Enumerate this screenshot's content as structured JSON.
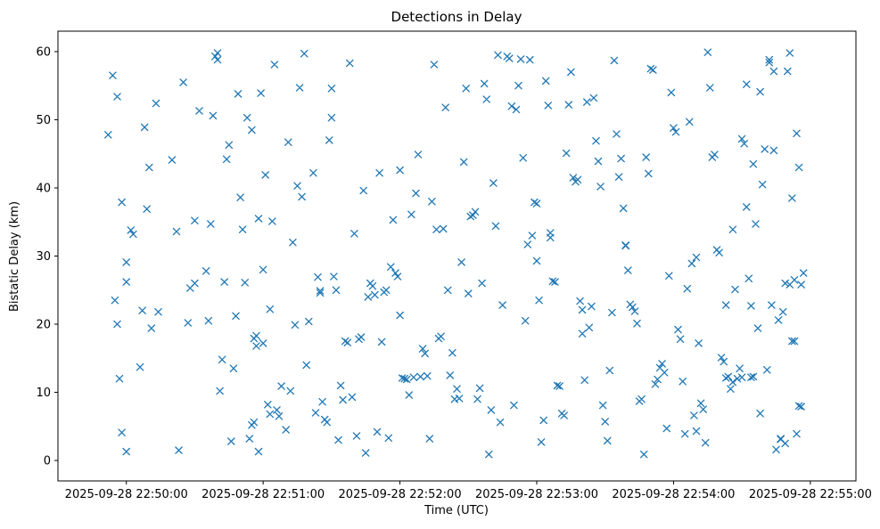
{
  "figure": {
    "background": "#ffffff"
  },
  "chart_data": {
    "type": "scatter",
    "title": "Detections in Delay",
    "xlabel": "Time (UTC)",
    "ylabel": "Bistatic Delay (km)",
    "marker": "x",
    "marker_color": "#1f77b4",
    "spine_color": "#000000",
    "legend": "none",
    "grid": false,
    "x_unit": "seconds after 2025-09-28 22:50:00 UTC",
    "xlim_seconds": [
      -30,
      320
    ],
    "ylim": [
      -3,
      63
    ],
    "x_ticks_seconds": [
      0,
      60,
      120,
      180,
      240,
      300
    ],
    "x_tick_labels": [
      "2025-09-28 22:50:00",
      "2025-09-28 22:51:00",
      "2025-09-28 22:52:00",
      "2025-09-28 22:53:00",
      "2025-09-28 22:54:00",
      "2025-09-28 22:55:00"
    ],
    "y_ticks": [
      0,
      10,
      20,
      30,
      40,
      50,
      60
    ],
    "points": [
      [
        -8,
        47.8
      ],
      [
        -6,
        56.5
      ],
      [
        -5,
        23.5
      ],
      [
        -4,
        53.4
      ],
      [
        -4,
        20.0
      ],
      [
        -2,
        37.9
      ],
      [
        -3,
        12.0
      ],
      [
        -2,
        4.1
      ],
      [
        0,
        29.1
      ],
      [
        0,
        26.2
      ],
      [
        0,
        1.3
      ],
      [
        2,
        33.8
      ],
      [
        3,
        33.2
      ],
      [
        6,
        13.7
      ],
      [
        7,
        22.0
      ],
      [
        8,
        48.9
      ],
      [
        9,
        36.9
      ],
      [
        10,
        43.0
      ],
      [
        11,
        19.4
      ],
      [
        13,
        52.4
      ],
      [
        14,
        21.8
      ],
      [
        20,
        44.1
      ],
      [
        22,
        33.6
      ],
      [
        23,
        1.5
      ],
      [
        25,
        55.5
      ],
      [
        27,
        20.2
      ],
      [
        28,
        25.3
      ],
      [
        30,
        26.0
      ],
      [
        30,
        35.2
      ],
      [
        32,
        51.3
      ],
      [
        35,
        27.8
      ],
      [
        36,
        20.5
      ],
      [
        37,
        34.7
      ],
      [
        38,
        50.6
      ],
      [
        39,
        59.3
      ],
      [
        40,
        59.8
      ],
      [
        40,
        58.8
      ],
      [
        41,
        10.2
      ],
      [
        42,
        14.8
      ],
      [
        43,
        26.2
      ],
      [
        44,
        44.2
      ],
      [
        45,
        46.3
      ],
      [
        46,
        2.8
      ],
      [
        47,
        13.5
      ],
      [
        48,
        21.2
      ],
      [
        49,
        53.8
      ],
      [
        50,
        38.6
      ],
      [
        51,
        33.9
      ],
      [
        52,
        26.1
      ],
      [
        53,
        50.3
      ],
      [
        54,
        3.2
      ],
      [
        55,
        48.5
      ],
      [
        55,
        5.2
      ],
      [
        56,
        5.6
      ],
      [
        56,
        17.9
      ],
      [
        57,
        18.3
      ],
      [
        57,
        16.8
      ],
      [
        58,
        1.3
      ],
      [
        58,
        35.5
      ],
      [
        59,
        53.9
      ],
      [
        60,
        28.0
      ],
      [
        60,
        17.2
      ],
      [
        61,
        41.9
      ],
      [
        62,
        8.2
      ],
      [
        63,
        6.8
      ],
      [
        63,
        22.2
      ],
      [
        64,
        35.1
      ],
      [
        65,
        58.1
      ],
      [
        66,
        7.4
      ],
      [
        67,
        6.5
      ],
      [
        68,
        10.9
      ],
      [
        70,
        4.5
      ],
      [
        71,
        46.7
      ],
      [
        72,
        10.2
      ],
      [
        73,
        32.0
      ],
      [
        74,
        19.9
      ],
      [
        75,
        40.3
      ],
      [
        76,
        54.7
      ],
      [
        77,
        38.7
      ],
      [
        78,
        59.7
      ],
      [
        79,
        14.0
      ],
      [
        80,
        20.4
      ],
      [
        82,
        42.2
      ],
      [
        83,
        7.0
      ],
      [
        84,
        26.9
      ],
      [
        85,
        24.9
      ],
      [
        85,
        24.6
      ],
      [
        86,
        8.6
      ],
      [
        87,
        6.0
      ],
      [
        88,
        5.6
      ],
      [
        89,
        47.0
      ],
      [
        90,
        54.6
      ],
      [
        90,
        50.3
      ],
      [
        91,
        27.0
      ],
      [
        92,
        25.0
      ],
      [
        93,
        3.0
      ],
      [
        94,
        11.0
      ],
      [
        95,
        8.9
      ],
      [
        96,
        17.5
      ],
      [
        97,
        17.3
      ],
      [
        98,
        58.3
      ],
      [
        99,
        9.3
      ],
      [
        100,
        33.3
      ],
      [
        101,
        3.6
      ],
      [
        102,
        17.8
      ],
      [
        103,
        18.1
      ],
      [
        104,
        39.6
      ],
      [
        105,
        1.1
      ],
      [
        106,
        24.0
      ],
      [
        107,
        26.0
      ],
      [
        108,
        25.6
      ],
      [
        109,
        24.3
      ],
      [
        110,
        4.2
      ],
      [
        111,
        42.2
      ],
      [
        112,
        17.4
      ],
      [
        113,
        24.7
      ],
      [
        114,
        25.0
      ],
      [
        115,
        3.3
      ],
      [
        116,
        28.4
      ],
      [
        117,
        35.3
      ],
      [
        118,
        27.5
      ],
      [
        119,
        27.0
      ],
      [
        120,
        21.3
      ],
      [
        120,
        42.6
      ],
      [
        121,
        12.1
      ],
      [
        122,
        12.0
      ],
      [
        123,
        11.9
      ],
      [
        124,
        9.6
      ],
      [
        125,
        36.1
      ],
      [
        126,
        12.2
      ],
      [
        127,
        39.2
      ],
      [
        128,
        44.9
      ],
      [
        129,
        12.3
      ],
      [
        130,
        16.4
      ],
      [
        131,
        15.7
      ],
      [
        132,
        12.4
      ],
      [
        133,
        3.2
      ],
      [
        134,
        38.0
      ],
      [
        135,
        58.1
      ],
      [
        136,
        33.9
      ],
      [
        137,
        17.9
      ],
      [
        138,
        18.2
      ],
      [
        139,
        34.0
      ],
      [
        140,
        51.8
      ],
      [
        141,
        25.0
      ],
      [
        142,
        12.5
      ],
      [
        143,
        15.8
      ],
      [
        144,
        9.0
      ],
      [
        145,
        10.5
      ],
      [
        146,
        9.1
      ],
      [
        147,
        29.1
      ],
      [
        148,
        43.8
      ],
      [
        149,
        54.6
      ],
      [
        150,
        24.5
      ],
      [
        151,
        35.8
      ],
      [
        152,
        36.0
      ],
      [
        153,
        36.5
      ],
      [
        154,
        9.0
      ],
      [
        155,
        10.6
      ],
      [
        156,
        26.0
      ],
      [
        157,
        55.3
      ],
      [
        158,
        53.0
      ],
      [
        159,
        0.9
      ],
      [
        160,
        7.4
      ],
      [
        161,
        40.7
      ],
      [
        162,
        34.4
      ],
      [
        163,
        59.5
      ],
      [
        164,
        5.6
      ],
      [
        165,
        22.8
      ],
      [
        167,
        59.3
      ],
      [
        168,
        59.0
      ],
      [
        169,
        52.0
      ],
      [
        170,
        8.1
      ],
      [
        171,
        51.5
      ],
      [
        172,
        55.0
      ],
      [
        173,
        58.9
      ],
      [
        174,
        44.4
      ],
      [
        175,
        20.5
      ],
      [
        176,
        31.7
      ],
      [
        177,
        58.8
      ],
      [
        178,
        33.0
      ],
      [
        179,
        37.9
      ],
      [
        180,
        37.7
      ],
      [
        180,
        29.3
      ],
      [
        181,
        23.5
      ],
      [
        182,
        2.7
      ],
      [
        183,
        5.9
      ],
      [
        184,
        55.7
      ],
      [
        185,
        52.1
      ],
      [
        186,
        33.4
      ],
      [
        186,
        32.7
      ],
      [
        187,
        26.3
      ],
      [
        188,
        26.2
      ],
      [
        189,
        11.0
      ],
      [
        190,
        10.9
      ],
      [
        191,
        6.9
      ],
      [
        192,
        6.6
      ],
      [
        193,
        45.1
      ],
      [
        194,
        52.2
      ],
      [
        195,
        57.0
      ],
      [
        196,
        41.5
      ],
      [
        197,
        40.9
      ],
      [
        198,
        41.2
      ],
      [
        199,
        23.4
      ],
      [
        200,
        22.1
      ],
      [
        200,
        18.6
      ],
      [
        201,
        11.8
      ],
      [
        202,
        52.6
      ],
      [
        203,
        19.5
      ],
      [
        204,
        22.6
      ],
      [
        205,
        53.2
      ],
      [
        206,
        46.9
      ],
      [
        207,
        43.9
      ],
      [
        208,
        40.2
      ],
      [
        209,
        8.1
      ],
      [
        210,
        5.7
      ],
      [
        211,
        2.9
      ],
      [
        212,
        13.2
      ],
      [
        213,
        21.7
      ],
      [
        214,
        58.7
      ],
      [
        215,
        47.9
      ],
      [
        216,
        41.6
      ],
      [
        217,
        44.3
      ],
      [
        218,
        37.0
      ],
      [
        219,
        31.5
      ],
      [
        219,
        31.6
      ],
      [
        220,
        27.9
      ],
      [
        221,
        22.9
      ],
      [
        222,
        22.5
      ],
      [
        223,
        21.9
      ],
      [
        224,
        20.1
      ],
      [
        225,
        8.7
      ],
      [
        226,
        9.0
      ],
      [
        227,
        0.9
      ],
      [
        228,
        44.5
      ],
      [
        229,
        42.1
      ],
      [
        230,
        57.5
      ],
      [
        231,
        57.3
      ],
      [
        232,
        11.2
      ],
      [
        233,
        11.9
      ],
      [
        234,
        13.6
      ],
      [
        235,
        14.2
      ],
      [
        236,
        12.9
      ],
      [
        237,
        4.7
      ],
      [
        238,
        27.1
      ],
      [
        239,
        54.0
      ],
      [
        240,
        48.8
      ],
      [
        241,
        48.2
      ],
      [
        242,
        19.2
      ],
      [
        243,
        17.8
      ],
      [
        244,
        11.6
      ],
      [
        245,
        3.9
      ],
      [
        246,
        25.2
      ],
      [
        247,
        49.7
      ],
      [
        248,
        28.9
      ],
      [
        249,
        6.6
      ],
      [
        250,
        4.3
      ],
      [
        250,
        29.8
      ],
      [
        251,
        17.2
      ],
      [
        252,
        8.4
      ],
      [
        253,
        7.5
      ],
      [
        254,
        2.6
      ],
      [
        255,
        59.9
      ],
      [
        256,
        54.7
      ],
      [
        257,
        44.5
      ],
      [
        258,
        44.9
      ],
      [
        259,
        30.9
      ],
      [
        260,
        30.5
      ],
      [
        261,
        15.1
      ],
      [
        262,
        14.5
      ],
      [
        263,
        22.8
      ],
      [
        263,
        12.1
      ],
      [
        264,
        12.3
      ],
      [
        265,
        10.5
      ],
      [
        266,
        11.5
      ],
      [
        266,
        33.9
      ],
      [
        267,
        25.1
      ],
      [
        268,
        12.0
      ],
      [
        269,
        13.5
      ],
      [
        270,
        12.2
      ],
      [
        270,
        47.2
      ],
      [
        271,
        46.5
      ],
      [
        272,
        55.2
      ],
      [
        272,
        37.2
      ],
      [
        273,
        26.7
      ],
      [
        274,
        22.7
      ],
      [
        274,
        12.2
      ],
      [
        275,
        12.3
      ],
      [
        275,
        43.5
      ],
      [
        276,
        34.7
      ],
      [
        277,
        19.4
      ],
      [
        278,
        6.9
      ],
      [
        278,
        54.1
      ],
      [
        279,
        40.5
      ],
      [
        280,
        45.7
      ],
      [
        281,
        13.3
      ],
      [
        282,
        58.8
      ],
      [
        282,
        58.4
      ],
      [
        283,
        22.8
      ],
      [
        284,
        45.5
      ],
      [
        284,
        57.1
      ],
      [
        285,
        1.6
      ],
      [
        286,
        20.6
      ],
      [
        287,
        3.1
      ],
      [
        287,
        3.2
      ],
      [
        288,
        21.8
      ],
      [
        289,
        2.5
      ],
      [
        289,
        26.0
      ],
      [
        290,
        57.1
      ],
      [
        291,
        25.8
      ],
      [
        291,
        59.8
      ],
      [
        292,
        38.5
      ],
      [
        292,
        17.5
      ],
      [
        293,
        26.5
      ],
      [
        293,
        17.5
      ],
      [
        294,
        3.9
      ],
      [
        294,
        48.0
      ],
      [
        295,
        43.0
      ],
      [
        295,
        8.0
      ],
      [
        296,
        7.9
      ],
      [
        296,
        25.8
      ],
      [
        297,
        27.5
      ]
    ]
  }
}
